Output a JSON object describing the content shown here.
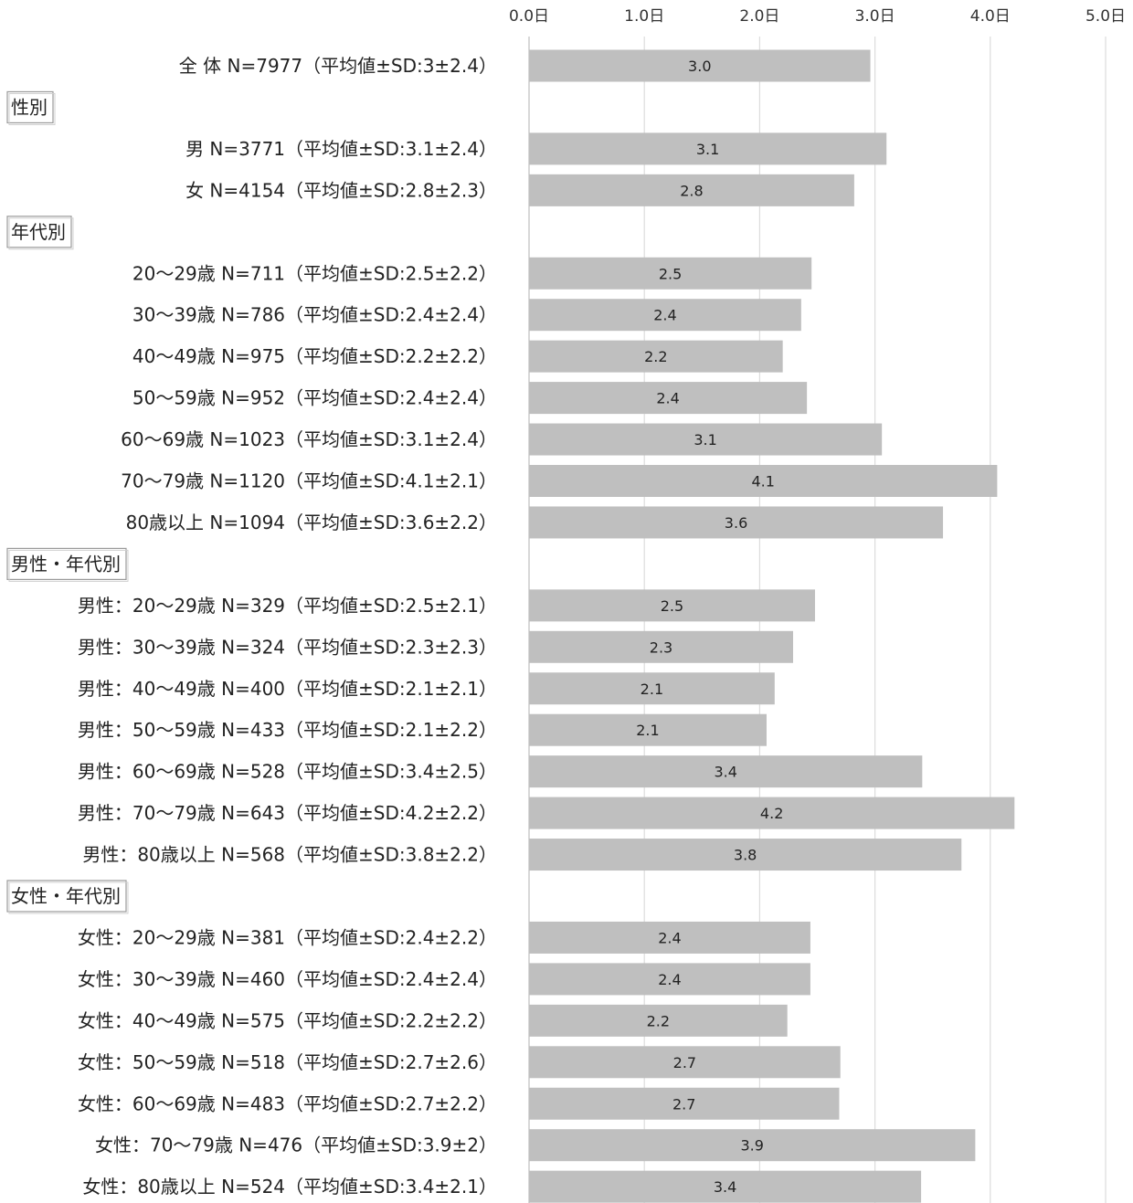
{
  "chart_data": {
    "type": "bar",
    "orientation": "horizontal",
    "title": "",
    "xlabel": "",
    "ylabel": "",
    "xlim": [
      0,
      5
    ],
    "tick_labels": [
      "0.0日",
      "1.0日",
      "2.0日",
      "3.0日",
      "4.0日",
      "5.0日"
    ],
    "grid": true,
    "bar_color": "#bfbfbf",
    "rows": [
      {
        "kind": "bar",
        "label": "全 体 N=7977（平均値±SD:3±2.4）",
        "value": 2.96,
        "value_label": "3.0"
      },
      {
        "kind": "section",
        "label": "性別"
      },
      {
        "kind": "bar",
        "label": "男 N=3771（平均値±SD:3.1±2.4）",
        "value": 3.1,
        "value_label": "3.1"
      },
      {
        "kind": "bar",
        "label": "女 N=4154（平均値±SD:2.8±2.3）",
        "value": 2.82,
        "value_label": "2.8"
      },
      {
        "kind": "section",
        "label": "年代別"
      },
      {
        "kind": "bar",
        "label": "20～29歳 N=711（平均値±SD:2.5±2.2）",
        "value": 2.45,
        "value_label": "2.5"
      },
      {
        "kind": "bar",
        "label": "30～39歳 N=786（平均値±SD:2.4±2.4）",
        "value": 2.36,
        "value_label": "2.4"
      },
      {
        "kind": "bar",
        "label": "40～49歳 N=975（平均値±SD:2.2±2.2）",
        "value": 2.2,
        "value_label": "2.2"
      },
      {
        "kind": "bar",
        "label": "50～59歳 N=952（平均値±SD:2.4±2.4）",
        "value": 2.41,
        "value_label": "2.4"
      },
      {
        "kind": "bar",
        "label": "60～69歳 N=1023（平均値±SD:3.1±2.4）",
        "value": 3.06,
        "value_label": "3.1"
      },
      {
        "kind": "bar",
        "label": "70～79歳 N=1120（平均値±SD:4.1±2.1）",
        "value": 4.06,
        "value_label": "4.1"
      },
      {
        "kind": "bar",
        "label": "80歳以上 N=1094（平均値±SD:3.6±2.2）",
        "value": 3.59,
        "value_label": "3.6"
      },
      {
        "kind": "section",
        "label": "男性・年代別"
      },
      {
        "kind": "bar",
        "label": "男性：20～29歳 N=329（平均値±SD:2.5±2.1）",
        "value": 2.48,
        "value_label": "2.5"
      },
      {
        "kind": "bar",
        "label": "男性：30～39歳 N=324（平均値±SD:2.3±2.3）",
        "value": 2.29,
        "value_label": "2.3"
      },
      {
        "kind": "bar",
        "label": "男性：40～49歳 N=400（平均値±SD:2.1±2.1）",
        "value": 2.13,
        "value_label": "2.1"
      },
      {
        "kind": "bar",
        "label": "男性：50～59歳 N=433（平均値±SD:2.1±2.2）",
        "value": 2.06,
        "value_label": "2.1"
      },
      {
        "kind": "bar",
        "label": "男性：60～69歳 N=528（平均値±SD:3.4±2.5）",
        "value": 3.41,
        "value_label": "3.4"
      },
      {
        "kind": "bar",
        "label": "男性：70～79歳 N=643（平均値±SD:4.2±2.2）",
        "value": 4.21,
        "value_label": "4.2"
      },
      {
        "kind": "bar",
        "label": "男性：80歳以上 N=568（平均値±SD:3.8±2.2）",
        "value": 3.75,
        "value_label": "3.8"
      },
      {
        "kind": "section",
        "label": "女性・年代別"
      },
      {
        "kind": "bar",
        "label": "女性：20～29歳 N=381（平均値±SD:2.4±2.2）",
        "value": 2.44,
        "value_label": "2.4"
      },
      {
        "kind": "bar",
        "label": "女性：30～39歳 N=460（平均値±SD:2.4±2.4）",
        "value": 2.44,
        "value_label": "2.4"
      },
      {
        "kind": "bar",
        "label": "女性：40～49歳 N=575（平均値±SD:2.2±2.2）",
        "value": 2.24,
        "value_label": "2.2"
      },
      {
        "kind": "bar",
        "label": "女性：50～59歳 N=518（平均値±SD:2.7±2.6）",
        "value": 2.7,
        "value_label": "2.7"
      },
      {
        "kind": "bar",
        "label": "女性：60～69歳 N=483（平均値±SD:2.7±2.2）",
        "value": 2.69,
        "value_label": "2.7"
      },
      {
        "kind": "bar",
        "label": "女性：70～79歳 N=476（平均値±SD:3.9±2）",
        "value": 3.87,
        "value_label": "3.9"
      },
      {
        "kind": "bar",
        "label": "女性：80歳以上 N=524（平均値±SD:3.4±2.1）",
        "value": 3.4,
        "value_label": "3.4"
      }
    ]
  }
}
